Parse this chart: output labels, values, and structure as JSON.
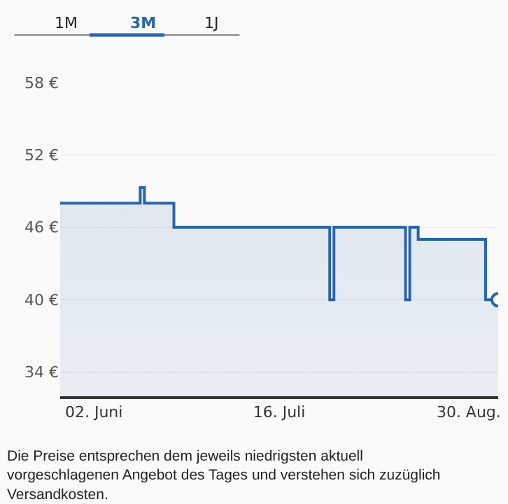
{
  "chart_data": {
    "type": "area",
    "x": [
      "--05-25",
      "--06-13",
      "--06-13",
      "--06-14",
      "--06-14",
      "--06-21",
      "--06-21",
      "--07-28",
      "--07-28",
      "--07-29",
      "--07-29",
      "--08-15",
      "--08-15",
      "--08-16",
      "--08-16",
      "--08-18",
      "--08-18",
      "--09-03",
      "--09-03",
      "--09-06"
    ],
    "series": [
      {
        "color": "#2a64a8",
        "values": [
          48,
          48,
          49.3,
          49.3,
          48,
          48,
          46,
          46,
          40,
          40,
          46,
          46,
          40,
          40,
          46,
          46,
          45,
          45,
          40,
          40
        ]
      }
    ],
    "xlim": [
      "--05-25",
      "--09-06"
    ],
    "xticks": [
      {
        "value": "--06-02",
        "label": "02. Juni"
      },
      {
        "value": "--07-16",
        "label": "16. Juli"
      },
      {
        "value": "--08-30",
        "label": "30. Aug."
      }
    ],
    "ylim": [
      32,
      58
    ],
    "yticks": [
      {
        "value": 34,
        "label": "34 €"
      },
      {
        "value": 40,
        "label": "40 €"
      },
      {
        "value": 46,
        "label": "46 €"
      },
      {
        "value": 52,
        "label": "52 €"
      },
      {
        "value": 58,
        "label": "58 €"
      }
    ],
    "grid": "y",
    "annotations": [
      "1M",
      "3M",
      "1J",
      "Die Preise entsprechen dem jeweils niedrigsten aktuell vorgeschlagenen Angebot des Tages und verstehen sich zuzüglich Versandkosten."
    ]
  }
}
